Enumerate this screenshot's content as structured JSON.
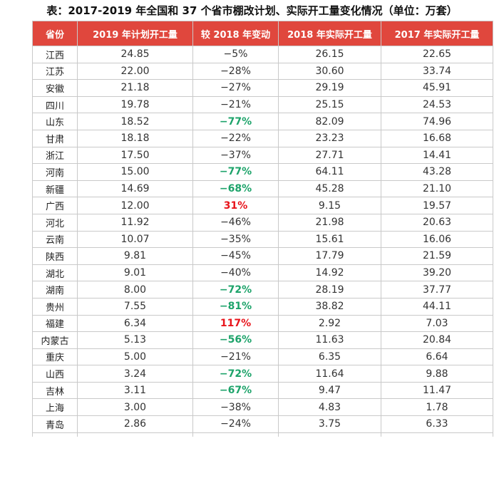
{
  "caption": "表：2017-2019 年全国和 37 个省市棚改计划、实际开工量变化情况（单位：万套）",
  "headers": [
    "省份",
    "2019 年计划开工量",
    "较 2018 年变动",
    "2018 年实际开工量",
    "2017 年实际开工量"
  ],
  "rows": [
    {
      "province": "江西",
      "plan2019": "24.85",
      "change": "−5%",
      "actual2018": "26.15",
      "actual2017": "22.65",
      "hl": ""
    },
    {
      "province": "江苏",
      "plan2019": "22.00",
      "change": "−28%",
      "actual2018": "30.60",
      "actual2017": "33.74",
      "hl": ""
    },
    {
      "province": "安徽",
      "plan2019": "21.18",
      "change": "−27%",
      "actual2018": "29.19",
      "actual2017": "45.91",
      "hl": ""
    },
    {
      "province": "四川",
      "plan2019": "19.78",
      "change": "−21%",
      "actual2018": "25.15",
      "actual2017": "24.53",
      "hl": ""
    },
    {
      "province": "山东",
      "plan2019": "18.52",
      "change": "−77%",
      "actual2018": "82.09",
      "actual2017": "74.96",
      "hl": "green"
    },
    {
      "province": "甘肃",
      "plan2019": "18.18",
      "change": "−22%",
      "actual2018": "23.23",
      "actual2017": "16.68",
      "hl": ""
    },
    {
      "province": "浙江",
      "plan2019": "17.50",
      "change": "−37%",
      "actual2018": "27.71",
      "actual2017": "14.41",
      "hl": ""
    },
    {
      "province": "河南",
      "plan2019": "15.00",
      "change": "−77%",
      "actual2018": "64.11",
      "actual2017": "43.28",
      "hl": "green"
    },
    {
      "province": "新疆",
      "plan2019": "14.69",
      "change": "−68%",
      "actual2018": "45.28",
      "actual2017": "21.10",
      "hl": "green"
    },
    {
      "province": "广西",
      "plan2019": "12.00",
      "change": "31%",
      "actual2018": "9.15",
      "actual2017": "19.57",
      "hl": "red"
    },
    {
      "province": "河北",
      "plan2019": "11.92",
      "change": "−46%",
      "actual2018": "21.98",
      "actual2017": "20.63",
      "hl": ""
    },
    {
      "province": "云南",
      "plan2019": "10.07",
      "change": "−35%",
      "actual2018": "15.61",
      "actual2017": "16.06",
      "hl": ""
    },
    {
      "province": "陕西",
      "plan2019": "9.81",
      "change": "−45%",
      "actual2018": "17.79",
      "actual2017": "21.59",
      "hl": ""
    },
    {
      "province": "湖北",
      "plan2019": "9.01",
      "change": "−40%",
      "actual2018": "14.92",
      "actual2017": "39.20",
      "hl": ""
    },
    {
      "province": "湖南",
      "plan2019": "8.00",
      "change": "−72%",
      "actual2018": "28.19",
      "actual2017": "37.77",
      "hl": "green"
    },
    {
      "province": "贵州",
      "plan2019": "7.55",
      "change": "−81%",
      "actual2018": "38.82",
      "actual2017": "44.11",
      "hl": "green"
    },
    {
      "province": "福建",
      "plan2019": "6.34",
      "change": "117%",
      "actual2018": "2.92",
      "actual2017": "7.03",
      "hl": "red"
    },
    {
      "province": "内蒙古",
      "plan2019": "5.13",
      "change": "−56%",
      "actual2018": "11.63",
      "actual2017": "20.84",
      "hl": "green"
    },
    {
      "province": "重庆",
      "plan2019": "5.00",
      "change": "−21%",
      "actual2018": "6.35",
      "actual2017": "6.64",
      "hl": ""
    },
    {
      "province": "山西",
      "plan2019": "3.24",
      "change": "−72%",
      "actual2018": "11.64",
      "actual2017": "9.88",
      "hl": "green"
    },
    {
      "province": "吉林",
      "plan2019": "3.11",
      "change": "−67%",
      "actual2018": "9.47",
      "actual2017": "11.47",
      "hl": "green"
    },
    {
      "province": "上海",
      "plan2019": "3.00",
      "change": "−38%",
      "actual2018": "4.83",
      "actual2017": "1.78",
      "hl": ""
    },
    {
      "province": "青岛",
      "plan2019": "2.86",
      "change": "−24%",
      "actual2018": "3.75",
      "actual2017": "6.33",
      "hl": ""
    }
  ],
  "colors": {
    "header_bg": "#e0473d",
    "header_text": "#ffffff",
    "decrease_highlight": "#1da36a",
    "increase_highlight": "#e8141b"
  }
}
